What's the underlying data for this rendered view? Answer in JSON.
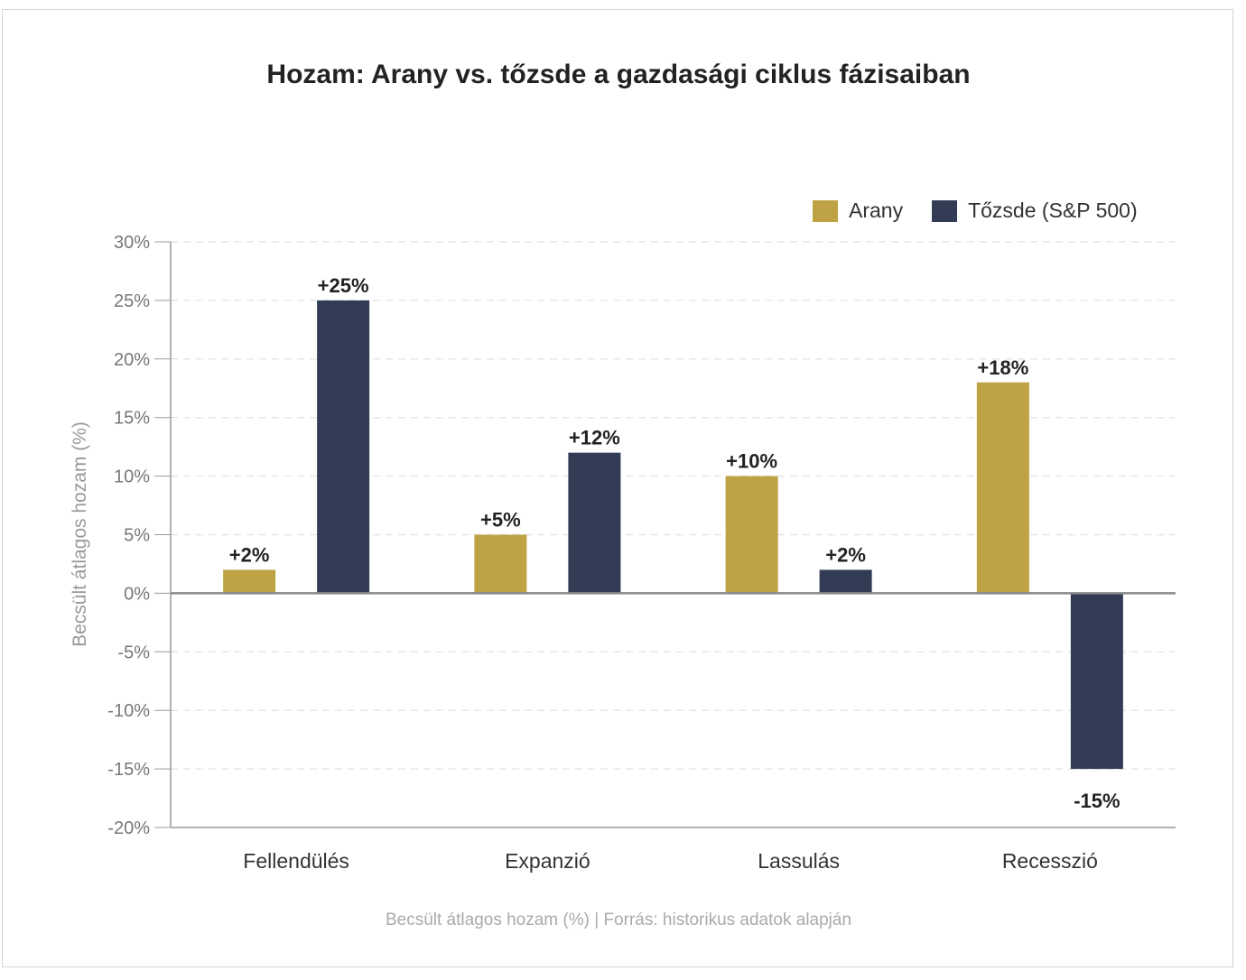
{
  "chart_data": {
    "type": "bar",
    "title": "Hozam: Arany vs. tőzsde a gazdasági ciklus fázisaiban",
    "ylabel": "Becsült átlagos hozam (%)",
    "xlabel": "",
    "categories": [
      "Fellendülés",
      "Expanzió",
      "Lassulás",
      "Recesszió"
    ],
    "series": [
      {
        "name": "Arany",
        "values": [
          2,
          5,
          10,
          18
        ],
        "labels": [
          "+2%",
          "+5%",
          "+10%",
          "+18%"
        ],
        "color": "#bfa244"
      },
      {
        "name": "Tőzsde (S&P 500)",
        "values": [
          25,
          12,
          2,
          -15
        ],
        "labels": [
          "+25%",
          "+12%",
          "+2%",
          "-15%"
        ],
        "color": "#323d55"
      }
    ],
    "ylim": [
      -20,
      30
    ],
    "yticks": [
      30,
      25,
      20,
      15,
      10,
      5,
      0,
      -5,
      -10,
      -15,
      -20
    ],
    "ytick_labels": [
      "30%",
      "25%",
      "20%",
      "15%",
      "10%",
      "5%",
      "0%",
      "-5%",
      "-10%",
      "-15%",
      "-20%"
    ],
    "grid": true,
    "legend_position": "top-right",
    "footer": "Becsült átlagos hozam (%) | Forrás: historikus adatok alapján"
  },
  "colors": {
    "grid": "#e6e6e6",
    "axis": "#999999",
    "zero_line": "#888888"
  }
}
